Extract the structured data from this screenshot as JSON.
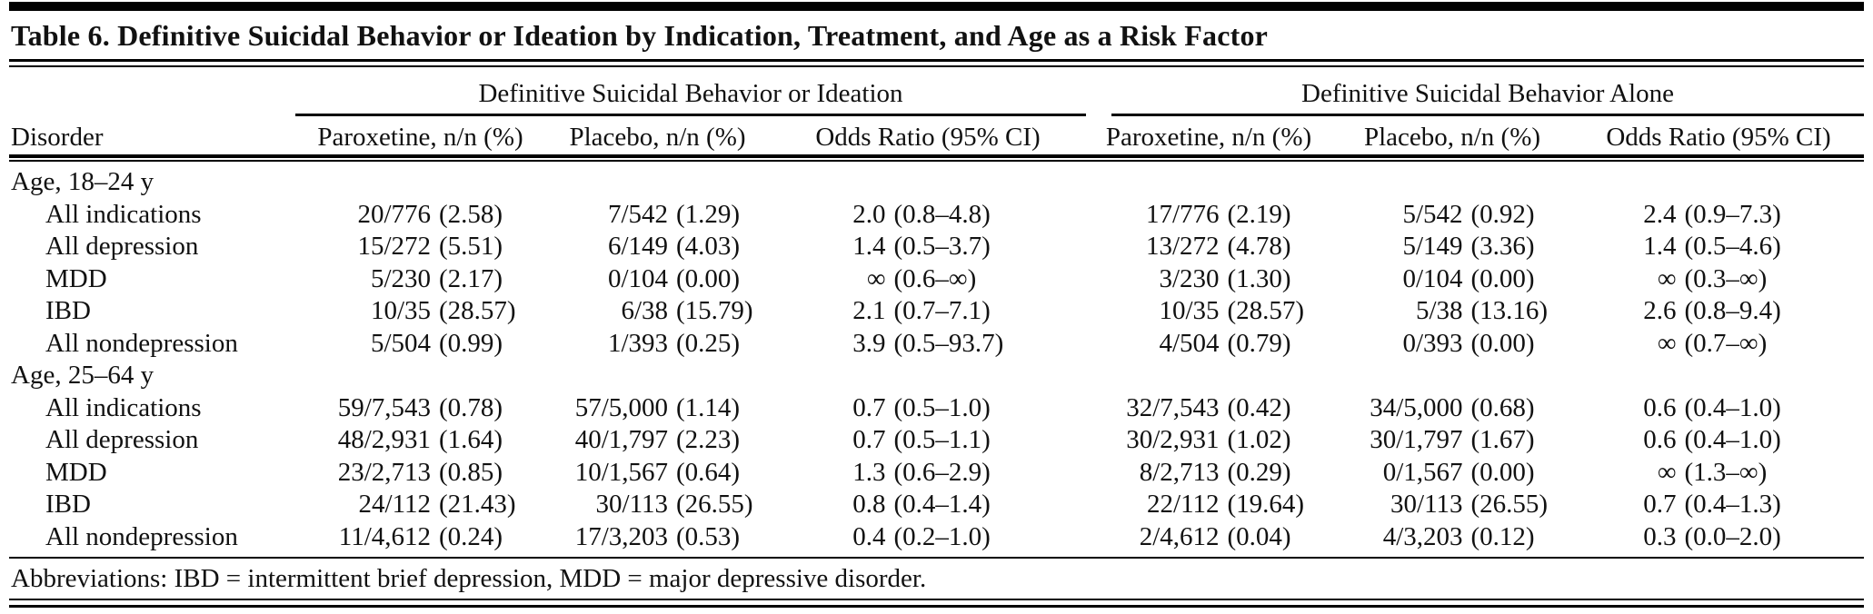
{
  "header": {
    "title": "Table 6. Definitive Suicidal Behavior or Ideation by Indication, Treatment, and Age as a Risk Factor"
  },
  "table": {
    "groups": [
      "Definitive Suicidal Behavior or Ideation",
      "Definitive Suicidal Behavior Alone"
    ],
    "columns": [
      "Disorder",
      "Paroxetine, n/n (%)",
      "Placebo, n/n (%)",
      "Odds Ratio (95% CI)",
      "Paroxetine, n/n (%)",
      "Placebo, n/n (%)",
      "Odds Ratio (95% CI)"
    ],
    "rows": [
      {
        "label": "Age, 18–24 y",
        "indent": false,
        "cells": []
      },
      {
        "label": "All indications",
        "indent": true,
        "cells": [
          [
            "20/776",
            "(2.58)"
          ],
          [
            "7/542",
            "(1.29)"
          ],
          [
            "2.0",
            "(0.8–4.8)"
          ],
          [
            "17/776",
            "(2.19)"
          ],
          [
            "5/542",
            "(0.92)"
          ],
          [
            "2.4",
            "(0.9–7.3)"
          ]
        ]
      },
      {
        "label": "All depression",
        "indent": true,
        "cells": [
          [
            "15/272",
            "(5.51)"
          ],
          [
            "6/149",
            "(4.03)"
          ],
          [
            "1.4",
            "(0.5–3.7)"
          ],
          [
            "13/272",
            "(4.78)"
          ],
          [
            "5/149",
            "(3.36)"
          ],
          [
            "1.4",
            "(0.5–4.6)"
          ]
        ]
      },
      {
        "label": "MDD",
        "indent": true,
        "cells": [
          [
            "5/230",
            "(2.17)"
          ],
          [
            "0/104",
            "(0.00)"
          ],
          [
            "∞",
            "(0.6–∞)"
          ],
          [
            "3/230",
            "(1.30)"
          ],
          [
            "0/104",
            "(0.00)"
          ],
          [
            "∞",
            "(0.3–∞)"
          ]
        ]
      },
      {
        "label": "IBD",
        "indent": true,
        "cells": [
          [
            "10/35",
            "(28.57)"
          ],
          [
            "6/38",
            "(15.79)"
          ],
          [
            "2.1",
            "(0.7–7.1)"
          ],
          [
            "10/35",
            "(28.57)"
          ],
          [
            "5/38",
            "(13.16)"
          ],
          [
            "2.6",
            "(0.8–9.4)"
          ]
        ]
      },
      {
        "label": "All nondepression",
        "indent": true,
        "cells": [
          [
            "5/504",
            "(0.99)"
          ],
          [
            "1/393",
            "(0.25)"
          ],
          [
            "3.9",
            "(0.5–93.7)"
          ],
          [
            "4/504",
            "(0.79)"
          ],
          [
            "0/393",
            "(0.00)"
          ],
          [
            "∞",
            "(0.7–∞)"
          ]
        ]
      },
      {
        "label": "Age, 25–64 y",
        "indent": false,
        "cells": []
      },
      {
        "label": "All indications",
        "indent": true,
        "cells": [
          [
            "59/7,543",
            "(0.78)"
          ],
          [
            "57/5,000",
            "(1.14)"
          ],
          [
            "0.7",
            "(0.5–1.0)"
          ],
          [
            "32/7,543",
            "(0.42)"
          ],
          [
            "34/5,000",
            "(0.68)"
          ],
          [
            "0.6",
            "(0.4–1.0)"
          ]
        ]
      },
      {
        "label": "All depression",
        "indent": true,
        "cells": [
          [
            "48/2,931",
            "(1.64)"
          ],
          [
            "40/1,797",
            "(2.23)"
          ],
          [
            "0.7",
            "(0.5–1.1)"
          ],
          [
            "30/2,931",
            "(1.02)"
          ],
          [
            "30/1,797",
            "(1.67)"
          ],
          [
            "0.6",
            "(0.4–1.0)"
          ]
        ]
      },
      {
        "label": "MDD",
        "indent": true,
        "cells": [
          [
            "23/2,713",
            "(0.85)"
          ],
          [
            "10/1,567",
            "(0.64)"
          ],
          [
            "1.3",
            "(0.6–2.9)"
          ],
          [
            "8/2,713",
            "(0.29)"
          ],
          [
            "0/1,567",
            "(0.00)"
          ],
          [
            "∞",
            "(1.3–∞)"
          ]
        ]
      },
      {
        "label": "IBD",
        "indent": true,
        "cells": [
          [
            "24/112",
            "(21.43)"
          ],
          [
            "30/113",
            "(26.55)"
          ],
          [
            "0.8",
            "(0.4–1.4)"
          ],
          [
            "22/112",
            "(19.64)"
          ],
          [
            "30/113",
            "(26.55)"
          ],
          [
            "0.7",
            "(0.4–1.3)"
          ]
        ]
      },
      {
        "label": "All nondepression",
        "indent": true,
        "cells": [
          [
            "11/4,612",
            "(0.24)"
          ],
          [
            "17/3,203",
            "(0.53)"
          ],
          [
            "0.4",
            "(0.2–1.0)"
          ],
          [
            "2/4,612",
            "(0.04)"
          ],
          [
            "4/3,203",
            "(0.12)"
          ],
          [
            "0.3",
            "(0.0–2.0)"
          ]
        ]
      }
    ]
  },
  "footer": {
    "abbreviations": "Abbreviations: IBD = intermittent brief depression, MDD = major depressive disorder."
  },
  "colors": {
    "text": "#111111",
    "rule": "#000000",
    "background": "#ffffff"
  }
}
